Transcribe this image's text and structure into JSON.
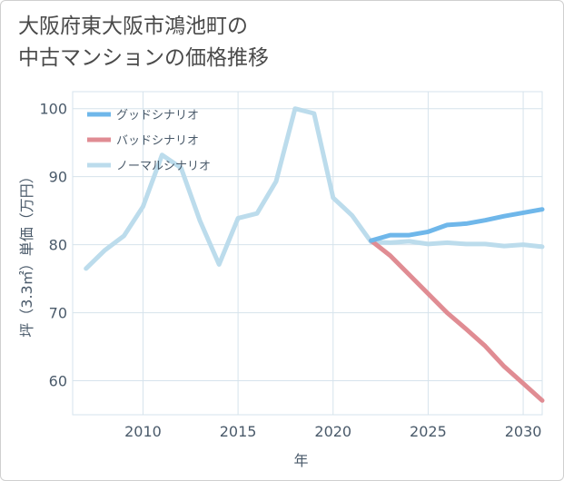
{
  "title_lines": [
    "大阪府東大阪市鴻池町の",
    "中古マンションの価格推移"
  ],
  "chart_data": {
    "type": "line",
    "xlabel": "年",
    "ylabel": "坪（3.3㎡）単価（万円）",
    "xlim": [
      2006.3,
      2031
    ],
    "ylim": [
      55,
      102.5
    ],
    "xticks": [
      2010,
      2015,
      2020,
      2025,
      2030
    ],
    "yticks": [
      60,
      70,
      80,
      90,
      100
    ],
    "grid": true,
    "legend_position": "top-left",
    "series": [
      {
        "name": "グッドシナリオ",
        "color": "#6fb7ea",
        "x": [
          2022,
          2023,
          2024,
          2025,
          2026,
          2027,
          2028,
          2029,
          2030,
          2031
        ],
        "y": [
          80.6,
          81.4,
          81.4,
          81.9,
          82.9,
          83.1,
          83.6,
          84.2,
          84.7,
          85.2
        ]
      },
      {
        "name": "バッドシナリオ",
        "color": "#e08c93",
        "x": [
          2022,
          2023,
          2024,
          2025,
          2026,
          2027,
          2028,
          2029,
          2030,
          2031
        ],
        "y": [
          80.6,
          78.4,
          75.6,
          72.8,
          70.0,
          67.6,
          65.1,
          62.1,
          59.6,
          57.1
        ]
      },
      {
        "name": "ノーマルシナリオ",
        "color": "#bcdcec",
        "x": [
          2007,
          2008,
          2009,
          2010,
          2011,
          2012,
          2013,
          2014,
          2015,
          2016,
          2017,
          2018,
          2019,
          2020,
          2021,
          2022,
          2023,
          2024,
          2025,
          2026,
          2027,
          2028,
          2029,
          2030,
          2031
        ],
        "y": [
          76.5,
          79.2,
          81.3,
          85.6,
          93.2,
          91.3,
          83.5,
          77.1,
          83.9,
          84.6,
          89.3,
          100.0,
          99.3,
          86.9,
          84.3,
          80.4,
          80.3,
          80.5,
          80.1,
          80.3,
          80.1,
          80.1,
          79.8,
          80.0,
          79.7
        ]
      }
    ]
  }
}
